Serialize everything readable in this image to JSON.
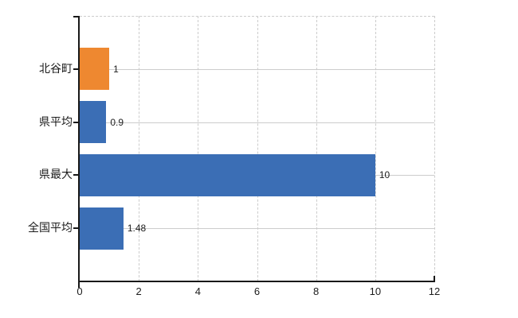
{
  "chart": {
    "background_color": "#ffffff",
    "axis_color": "#181818",
    "grid_color": "#cccccc",
    "text_color": "#1c1c1c"
  },
  "chart_data": {
    "type": "bar",
    "orientation": "horizontal",
    "title": "",
    "xlabel": "",
    "ylabel": "",
    "categories": [
      "北谷町",
      "県平均",
      "県最大",
      "全国平均"
    ],
    "values": [
      1,
      0.9,
      10,
      1.48
    ],
    "value_labels": [
      "1",
      "0.9",
      "10",
      "1.48"
    ],
    "bar_colors": [
      "#ee8830",
      "#3b6eb5",
      "#3b6eb5",
      "#3b6eb5"
    ],
    "xlim": [
      0,
      12
    ],
    "x_ticks": [
      0,
      2,
      4,
      6,
      8,
      10,
      12
    ],
    "x_tick_labels": [
      "0",
      "2",
      "4",
      "6",
      "8",
      "10",
      "12"
    ],
    "grid": true,
    "grid_vertical_style": "dashed",
    "grid_horizontal_style": "solid",
    "legend": false
  }
}
